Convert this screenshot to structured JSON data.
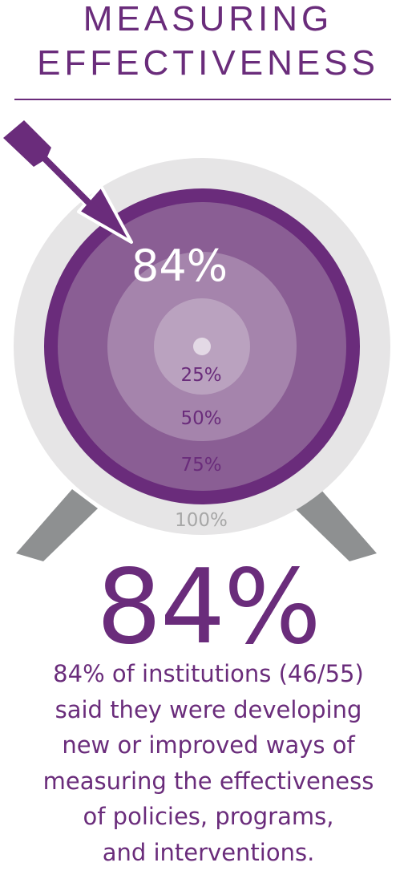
{
  "header": {
    "title_line1": "MEASURING",
    "title_line2": "EFFECTIVENESS"
  },
  "colors": {
    "purple": "#6a2c7b",
    "ring_outer": "#e6e5e6",
    "stand": "#8e9091"
  },
  "chart_data": {
    "type": "target",
    "value": 84,
    "value_label": "84%",
    "rings": [
      {
        "label": "25%",
        "value": 25
      },
      {
        "label": "50%",
        "value": 50
      },
      {
        "label": "75%",
        "value": 75
      },
      {
        "label": "100%",
        "value": 100
      }
    ]
  },
  "headline": "84%",
  "description": {
    "lines": [
      "84% of institutions (46/55)",
      "said they were developing",
      "new or improved ways of",
      "measuring the effectiveness",
      "of policies, programs,",
      "and interventions."
    ]
  }
}
